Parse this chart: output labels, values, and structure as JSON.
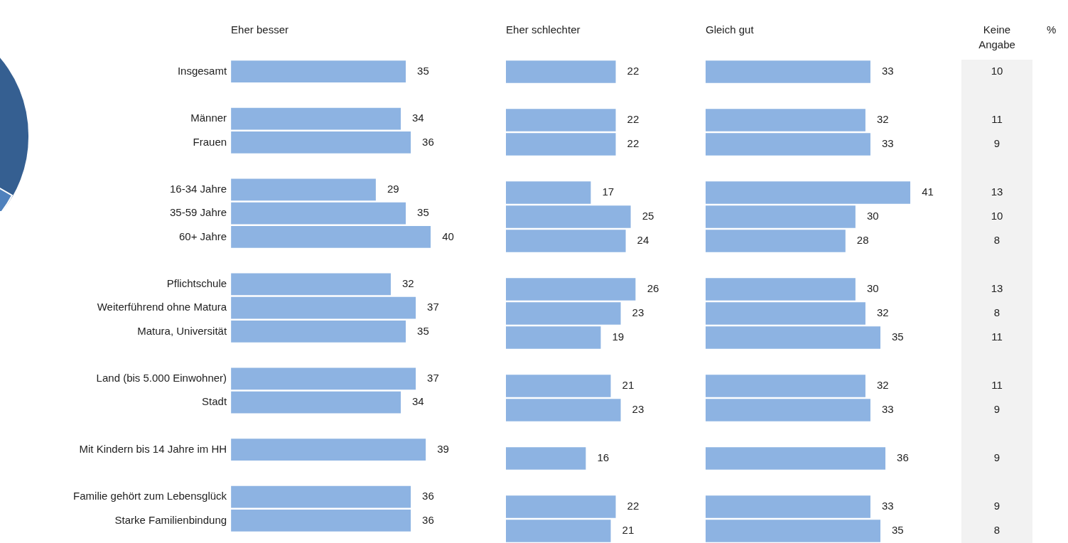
{
  "chart_data": [
    {
      "type": "bar",
      "orientation": "horizontal",
      "title": "Eher besser",
      "categories": [
        "Insgesamt",
        null,
        "Männer",
        "Frauen",
        null,
        "16-34 Jahre",
        "35-59 Jahre",
        "60+ Jahre",
        null,
        "Pflichtschule",
        "Weiterführend ohne Matura",
        "Matura, Universität",
        null,
        "Land (bis 5.000 Einwohner)",
        "Stadt",
        null,
        "Mit Kindern bis 14 Jahre im HH",
        null,
        "Familie gehört zum Lebensglück",
        "Starke Familienbindung"
      ],
      "values": [
        35,
        null,
        34,
        36,
        null,
        29,
        35,
        40,
        null,
        32,
        37,
        35,
        null,
        37,
        34,
        null,
        39,
        null,
        36,
        36
      ],
      "color": "#8db3e2",
      "data_labels": true,
      "tick_labels": "y",
      "grid": false,
      "legend": false
    },
    {
      "type": "bar",
      "orientation": "horizontal",
      "title": "Eher schlechter",
      "categories": [
        null,
        null,
        null,
        null,
        null,
        null,
        null,
        null,
        null,
        null,
        null,
        null,
        null,
        null,
        null,
        null,
        null,
        null,
        null,
        null
      ],
      "values": [
        22,
        null,
        22,
        22,
        null,
        17,
        25,
        24,
        null,
        26,
        23,
        19,
        null,
        21,
        23,
        null,
        16,
        null,
        22,
        21
      ],
      "color": "#8db3e2",
      "data_labels": true,
      "tick_labels": false,
      "grid": false,
      "legend": false
    },
    {
      "type": "bar",
      "orientation": "horizontal",
      "title": "Gleich gut",
      "categories": [
        null,
        null,
        null,
        null,
        null,
        null,
        null,
        null,
        null,
        null,
        null,
        null,
        null,
        null,
        null,
        null,
        null,
        null,
        null,
        null
      ],
      "values": [
        33,
        null,
        32,
        33,
        null,
        41,
        30,
        28,
        null,
        30,
        32,
        35,
        null,
        32,
        33,
        null,
        36,
        null,
        33,
        35
      ],
      "color": "#8db3e2",
      "data_labels": true,
      "tick_labels": false,
      "grid": false,
      "legend": false
    },
    {
      "type": "other",
      "title": "Keine Angabe",
      "values": [
        10,
        null,
        11,
        9,
        null,
        13,
        10,
        8,
        null,
        13,
        8,
        11,
        null,
        11,
        9,
        null,
        9,
        null,
        9,
        8
      ],
      "data_labels": true,
      "color": "#f2f2f2",
      "annotations": [
        "%"
      ]
    }
  ]
}
